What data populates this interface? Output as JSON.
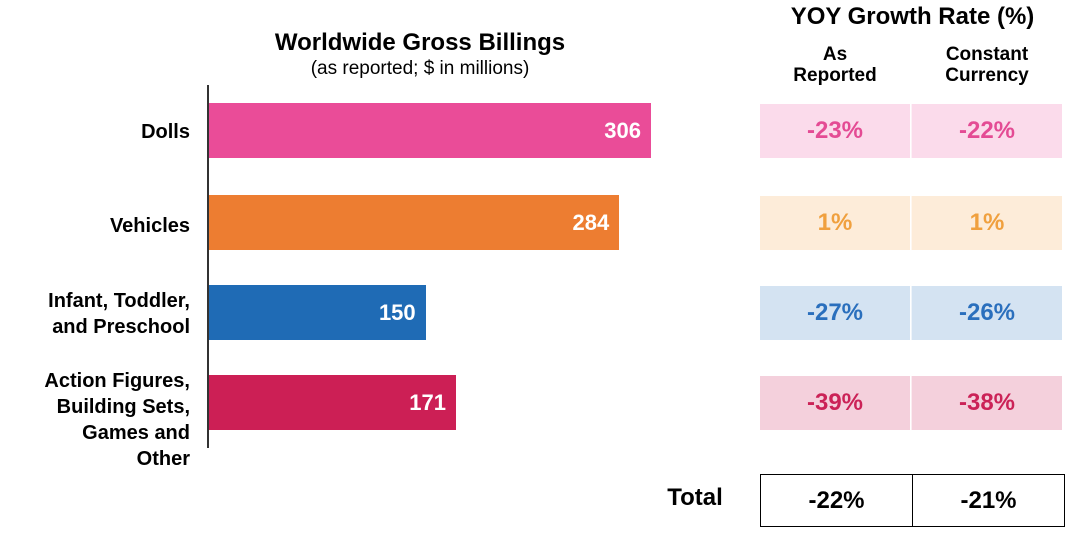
{
  "chart_data": {
    "type": "bar",
    "orientation": "horizontal",
    "title": "Worldwide Gross Billings",
    "subtitle": "(as reported; $ in millions)",
    "categories": [
      "Dolls",
      "Vehicles",
      "Infant, Toddler, and Preschool",
      "Action Figures, Building Sets, Games and Other"
    ],
    "category_label_lines": [
      [
        "Dolls"
      ],
      [
        "Vehicles"
      ],
      [
        "Infant, Toddler,",
        "and Preschool"
      ],
      [
        "Action Figures,",
        "Building Sets,",
        "Games and",
        "Other"
      ]
    ],
    "values": [
      306,
      284,
      150,
      171
    ],
    "value_labels": [
      "306",
      "284",
      "150",
      "171"
    ],
    "colors": [
      "#ea4c98",
      "#ed7d31",
      "#1f6bb5",
      "#cc1f55"
    ],
    "xlim": [
      0,
      306
    ]
  },
  "yoy_table": {
    "title": "YOY Growth Rate (%)",
    "columns": [
      {
        "lines": [
          "As",
          "Reported"
        ]
      },
      {
        "lines": [
          "Constant",
          "Currency"
        ]
      }
    ],
    "rows": [
      {
        "category": "Dolls",
        "as_reported": "-23%",
        "constant_currency": "-22%",
        "bg": "#fbdbeb",
        "fg": "#e44b94"
      },
      {
        "category": "Vehicles",
        "as_reported": "1%",
        "constant_currency": "1%",
        "bg": "#fdecd9",
        "fg": "#f0a03e"
      },
      {
        "category": "Infant, Toddler, and Preschool",
        "as_reported": "-27%",
        "constant_currency": "-26%",
        "bg": "#d4e3f2",
        "fg": "#2a6fbd"
      },
      {
        "category": "Action Figures, Building Sets, Games and Other",
        "as_reported": "-39%",
        "constant_currency": "-38%",
        "bg": "#f4d0dc",
        "fg": "#cb2257"
      }
    ],
    "total": {
      "label": "Total",
      "as_reported": "-22%",
      "constant_currency": "-21%"
    }
  }
}
